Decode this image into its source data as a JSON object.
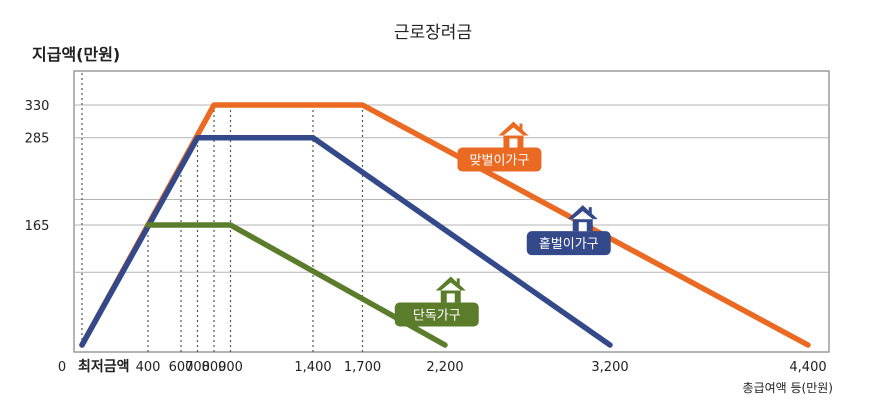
{
  "chart_data": {
    "type": "line",
    "title": "근로장려금",
    "ylabel": "지급액(만원)",
    "xlabel": "총급여액 등(만원)",
    "x_origin_label": "0",
    "x_min_label": "최저금액",
    "xlim": [
      -100,
      4450
    ],
    "ylim": [
      0,
      372
    ],
    "x_ticks": [
      {
        "x": 400,
        "label": "400"
      },
      {
        "x": 600,
        "label": "600"
      },
      {
        "x": 700,
        "label": "700"
      },
      {
        "x": 800,
        "label": "800"
      },
      {
        "x": 900,
        "label": "900"
      },
      {
        "x": 1400,
        "label": "1,400"
      },
      {
        "x": 1700,
        "label": "1,700"
      },
      {
        "x": 2200,
        "label": "2,200"
      },
      {
        "x": 3200,
        "label": "3,200"
      },
      {
        "x": 4400,
        "label": "4,400"
      }
    ],
    "y_ticks": [
      {
        "y": 165,
        "label": "165"
      },
      {
        "y": 285,
        "label": "285"
      },
      {
        "y": 330,
        "label": "330"
      }
    ],
    "y_grid": [
      100,
      165,
      200,
      285,
      330
    ],
    "series": [
      {
        "name": "맞벌이가구",
        "color": "#ea6a23",
        "x": [
          0,
          800,
          1700,
          4400
        ],
        "y": [
          0,
          330,
          330,
          0
        ]
      },
      {
        "name": "홑벌이가구",
        "color": "#34498a",
        "x": [
          0,
          700,
          1400,
          3200
        ],
        "y": [
          0,
          285,
          285,
          0
        ]
      },
      {
        "name": "단독가구",
        "color": "#5b7d2b",
        "x": [
          400,
          900,
          2200
        ],
        "y": [
          165,
          165,
          0
        ]
      }
    ],
    "vlines": [
      400,
      600,
      700,
      800,
      900,
      1400,
      1700
    ],
    "labels": [
      {
        "series": 0,
        "x": 2530,
        "y": 255,
        "icon": "house-icon"
      },
      {
        "series": 1,
        "x": 2950,
        "y": 140,
        "icon": "house-icon"
      },
      {
        "series": 2,
        "x": 2150,
        "y": 42,
        "icon": "house-icon"
      }
    ]
  }
}
